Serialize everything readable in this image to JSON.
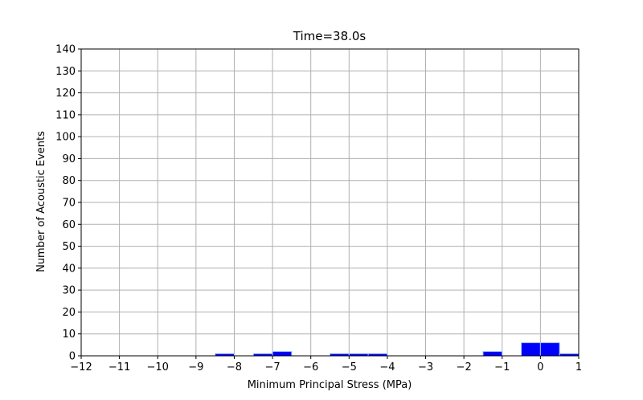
{
  "chart_data": {
    "type": "bar",
    "title": "Time=38.0s",
    "xlabel": "Minimum Principal Stress (MPa)",
    "ylabel": "Number of Acoustic Events",
    "xlim": [
      -12,
      1
    ],
    "ylim": [
      0,
      140
    ],
    "grid": true,
    "bin_width": 0.5,
    "bar_color": "#0000ff",
    "x_ticks": [
      -12,
      -11,
      -10,
      -9,
      -8,
      -7,
      -6,
      -5,
      -4,
      -3,
      -2,
      -1,
      0,
      1
    ],
    "x_tick_labels": [
      "−12",
      "−11",
      "−10",
      "−9",
      "−8",
      "−7",
      "−6",
      "−5",
      "−4",
      "−3",
      "−2",
      "−1",
      "0",
      "1"
    ],
    "y_ticks": [
      0,
      10,
      20,
      30,
      40,
      50,
      60,
      70,
      80,
      90,
      100,
      110,
      120,
      130,
      140
    ],
    "y_tick_labels": [
      "0",
      "10",
      "20",
      "30",
      "40",
      "50",
      "60",
      "70",
      "80",
      "90",
      "100",
      "110",
      "120",
      "130",
      "140"
    ],
    "bins": [
      {
        "x0": -8.5,
        "x1": -8.0,
        "count": 1
      },
      {
        "x0": -7.5,
        "x1": -7.0,
        "count": 1
      },
      {
        "x0": -7.0,
        "x1": -6.5,
        "count": 2
      },
      {
        "x0": -5.5,
        "x1": -5.0,
        "count": 1
      },
      {
        "x0": -5.0,
        "x1": -4.5,
        "count": 1
      },
      {
        "x0": -4.5,
        "x1": -4.0,
        "count": 1
      },
      {
        "x0": -1.5,
        "x1": -1.0,
        "count": 2
      },
      {
        "x0": -0.5,
        "x1": 0.0,
        "count": 6
      },
      {
        "x0": 0.0,
        "x1": 0.5,
        "count": 6
      },
      {
        "x0": 0.5,
        "x1": 1.0,
        "count": 1
      }
    ]
  }
}
